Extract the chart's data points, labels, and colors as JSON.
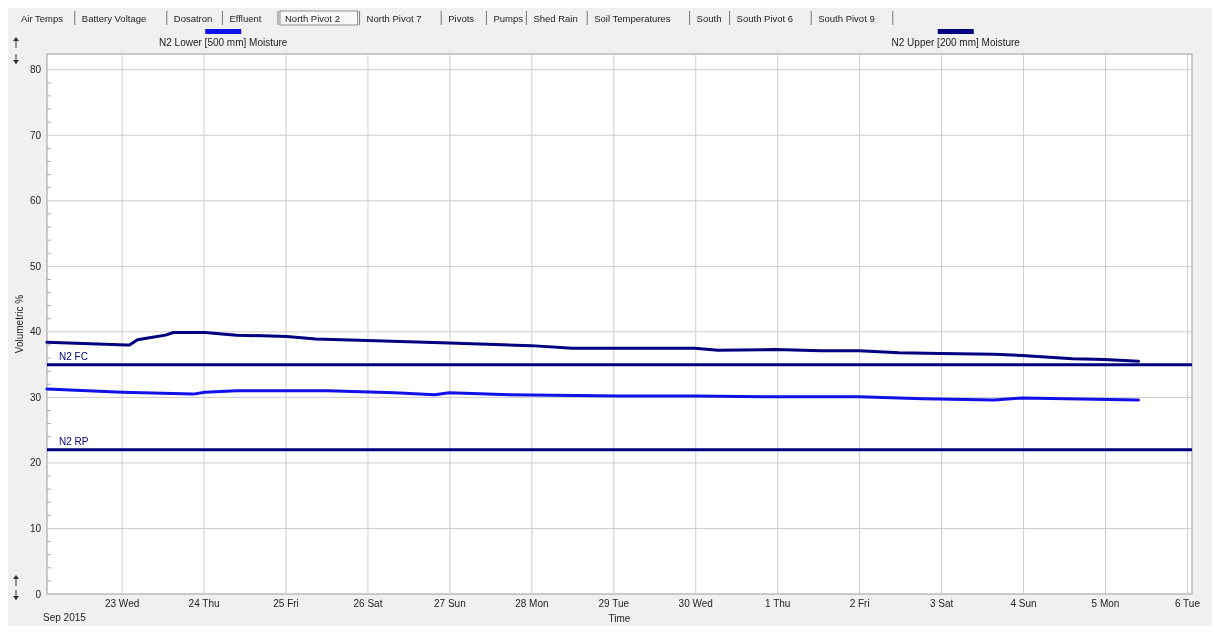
{
  "chart_data": {
    "type": "line",
    "xlabel": "Time",
    "ylabel": "Volumetric %",
    "xlim": [
      "2015-09-22T02:00",
      "2015-10-06T01:20"
    ],
    "xticks": [
      {
        "value": "2015-09-23",
        "label": "23 Wed"
      },
      {
        "value": "2015-09-24",
        "label": "24 Thu"
      },
      {
        "value": "2015-09-25",
        "label": "25 Fri"
      },
      {
        "value": "2015-09-26",
        "label": "26 Sat"
      },
      {
        "value": "2015-09-27",
        "label": "27 Sun"
      },
      {
        "value": "2015-09-28",
        "label": "28 Mon"
      },
      {
        "value": "2015-09-29",
        "label": "29 Tue"
      },
      {
        "value": "2015-09-30",
        "label": "30 Wed"
      },
      {
        "value": "2015-10-01",
        "label": "1 Thu"
      },
      {
        "value": "2015-10-02",
        "label": "2 Fri"
      },
      {
        "value": "2015-10-03",
        "label": "3 Sat"
      },
      {
        "value": "2015-10-04",
        "label": "4 Sun"
      },
      {
        "value": "2015-10-05",
        "label": "5 Mon"
      },
      {
        "value": "2015-10-06",
        "label": "6 Tue"
      }
    ],
    "ylim": [
      0,
      82.4
    ],
    "yticks": [
      0,
      {
        "value": 2,
        "label": null
      },
      {
        "value": 4,
        "label": null
      },
      {
        "value": 6,
        "label": null
      },
      {
        "value": 8,
        "label": null
      },
      10,
      {
        "value": 12,
        "label": null
      },
      {
        "value": 14,
        "label": null
      },
      {
        "value": 16,
        "label": null
      },
      {
        "value": 18,
        "label": null
      },
      20,
      {
        "value": 22,
        "label": null
      },
      {
        "value": 24,
        "label": null
      },
      {
        "value": 26,
        "label": null
      },
      {
        "value": 28,
        "label": null
      },
      30,
      {
        "value": 32,
        "label": null
      },
      {
        "value": 34,
        "label": null
      },
      {
        "value": 36,
        "label": null
      },
      {
        "value": 38,
        "label": null
      },
      40,
      {
        "value": 42,
        "label": null
      },
      {
        "value": 44,
        "label": null
      },
      {
        "value": 46,
        "label": null
      },
      {
        "value": 48,
        "label": null
      },
      50,
      {
        "value": 52,
        "label": null
      },
      {
        "value": 54,
        "label": null
      },
      {
        "value": 56,
        "label": null
      },
      {
        "value": 58,
        "label": null
      },
      60,
      {
        "value": 62,
        "label": null
      },
      {
        "value": 64,
        "label": null
      },
      {
        "value": 66,
        "label": null
      },
      {
        "value": 68,
        "label": null
      },
      70,
      {
        "value": 72,
        "label": null
      },
      {
        "value": 74,
        "label": null
      },
      {
        "value": 76,
        "label": null
      },
      {
        "value": 78,
        "label": null
      },
      80
    ],
    "grid": true,
    "legend": "top",
    "line_style": "solid",
    "series": [
      {
        "name": "N2 Lower [500 mm] Moisture",
        "color": "#1010e8",
        "x": [
          "2015-09-22T02:00",
          "2015-09-23T00:00",
          "2015-09-23T20:50",
          "2015-09-24T00:15",
          "2015-09-24T09:30",
          "2015-09-25T12:10",
          "2015-09-26T07:45",
          "2015-09-26T19:30",
          "2015-09-26T23:50",
          "2015-09-27T17:30",
          "2015-09-29T01:40",
          "2015-09-29T23:45",
          "2015-09-30T23:30",
          "2015-10-01T23:50",
          "2015-10-02T18:30",
          "2015-10-03T15:20",
          "2015-10-03T23:30",
          "2015-10-05T09:40"
        ],
        "values": [
          31.3,
          30.8,
          30.5,
          30.8,
          31.0,
          31.0,
          30.7,
          30.4,
          30.7,
          30.4,
          30.2,
          30.2,
          30.1,
          30.1,
          29.8,
          29.6,
          29.9,
          29.6
        ]
      },
      {
        "name": "N2 Upper [200 mm] Moisture",
        "color": "#000080",
        "x": [
          "2015-09-22T02:00",
          "2015-09-23T01:10",
          "2015-09-23T02:10",
          "2015-09-23T04:30",
          "2015-09-23T08:00",
          "2015-09-23T12:45",
          "2015-09-23T15:00",
          "2015-09-24T00:15",
          "2015-09-24T09:30",
          "2015-09-25T00:15",
          "2015-09-25T08:40",
          "2015-09-25T23:50",
          "2015-09-26T23:50",
          "2015-09-27T23:50",
          "2015-09-28T11:50",
          "2015-09-29T01:40",
          "2015-09-29T23:45",
          "2015-09-30T06:30",
          "2015-09-30T23:30",
          "2015-10-01T12:30",
          "2015-10-01T23:50",
          "2015-10-02T11:30",
          "2015-10-02T23:45",
          "2015-10-03T15:20",
          "2015-10-03T23:30",
          "2015-10-04T14:25",
          "2015-10-04T23:50",
          "2015-10-05T09:40"
        ],
        "values": [
          38.4,
          38.0,
          38.0,
          38.8,
          39.1,
          39.5,
          39.9,
          39.9,
          39.5,
          39.3,
          38.9,
          38.7,
          38.3,
          37.9,
          37.5,
          37.5,
          37.5,
          37.2,
          37.3,
          37.1,
          37.1,
          36.8,
          36.7,
          36.6,
          36.4,
          35.9,
          35.8,
          35.5
        ]
      }
    ],
    "ref_lines": [
      {
        "axis": "y",
        "value": 35,
        "label": "N2 FC",
        "color": "#000080"
      },
      {
        "axis": "y",
        "value": 22,
        "label": "N2 RP",
        "color": "#000080"
      }
    ],
    "annotations": [
      "Sep 2015",
      "Air Temps",
      "Battery Voltage",
      "Dosatron",
      "Effluent",
      "North Pivot 2",
      "North Pivot 7",
      "Pivots",
      "Pumps",
      "Shed Rain",
      "Soil Temperatures",
      "South",
      "South Pivot 6",
      "South Pivot 9"
    ]
  }
}
